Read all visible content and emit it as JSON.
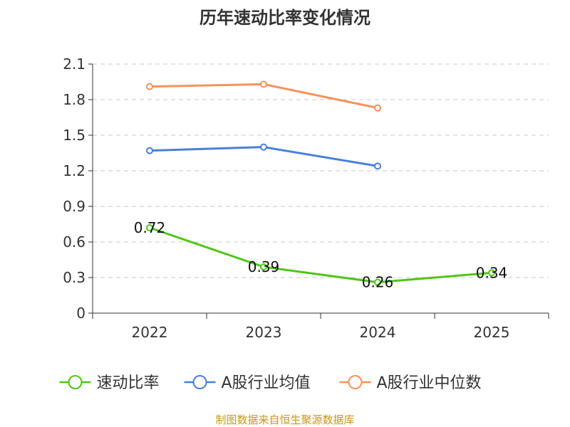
{
  "chart_data": {
    "type": "line",
    "title": "历年速动比率变化情况",
    "categories": [
      "2022",
      "2023",
      "2024",
      "2025"
    ],
    "y_ticks": [
      "0",
      "0.3",
      "0.6",
      "0.9",
      "1.2",
      "1.5",
      "1.8",
      "2.1"
    ],
    "ylim": [
      0,
      2.1
    ],
    "grid": true,
    "legend_position": "bottom",
    "series": [
      {
        "name": "速动比率",
        "color": "#52c41a",
        "values": [
          0.72,
          0.39,
          0.26,
          0.34
        ],
        "labels": [
          "0.72",
          "0.39",
          "0.26",
          "0.34"
        ]
      },
      {
        "name": "A股行业均值",
        "color": "#4a7fd8",
        "values": [
          1.37,
          1.4,
          1.24,
          null
        ]
      },
      {
        "name": "A股行业中位数",
        "color": "#f5925c",
        "values": [
          1.91,
          1.93,
          1.73,
          null
        ]
      }
    ],
    "source": "制图数据来自恒生聚源数据库"
  }
}
